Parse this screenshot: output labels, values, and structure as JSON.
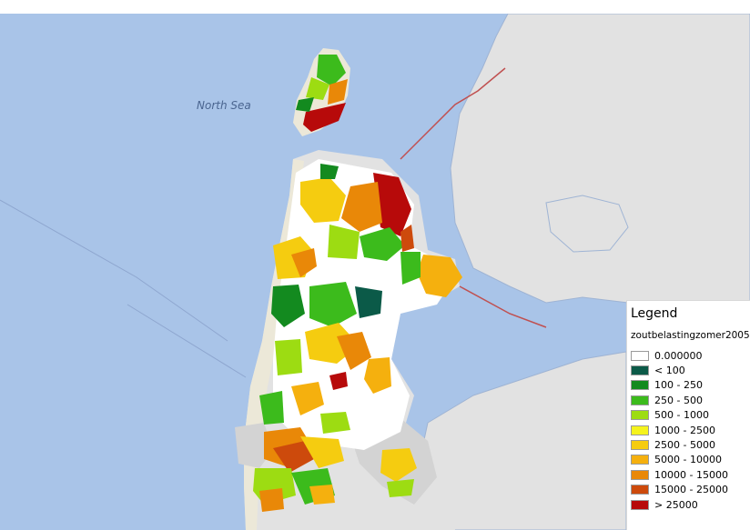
{
  "map": {
    "sea_label": "North Sea",
    "colors": {
      "sea": "#a9c4e8",
      "land": "#e2e2e2",
      "coast_sand": "#ece8d8",
      "urban": "#d3d3d3"
    }
  },
  "legend": {
    "title": "Legend",
    "layer_name": "zoutbelastingzomer2005",
    "items": [
      {
        "label": "0.000000",
        "color": "#ffffff"
      },
      {
        "label": "< 100",
        "color": "#0b5a48"
      },
      {
        "label": "100 - 250",
        "color": "#138a1f"
      },
      {
        "label": "250 - 500",
        "color": "#3cbb1c"
      },
      {
        "label": "500 - 1000",
        "color": "#9ddc12"
      },
      {
        "label": "1000 - 2500",
        "color": "#f5f31c"
      },
      {
        "label": "2500 - 5000",
        "color": "#f5cc10"
      },
      {
        "label": "5000 - 10000",
        "color": "#f5b00e"
      },
      {
        "label": "10000 - 15000",
        "color": "#e98808"
      },
      {
        "label": "15000 - 25000",
        "color": "#cd4a0c"
      },
      {
        "label": "> 25000",
        "color": "#b70a0a"
      }
    ]
  }
}
